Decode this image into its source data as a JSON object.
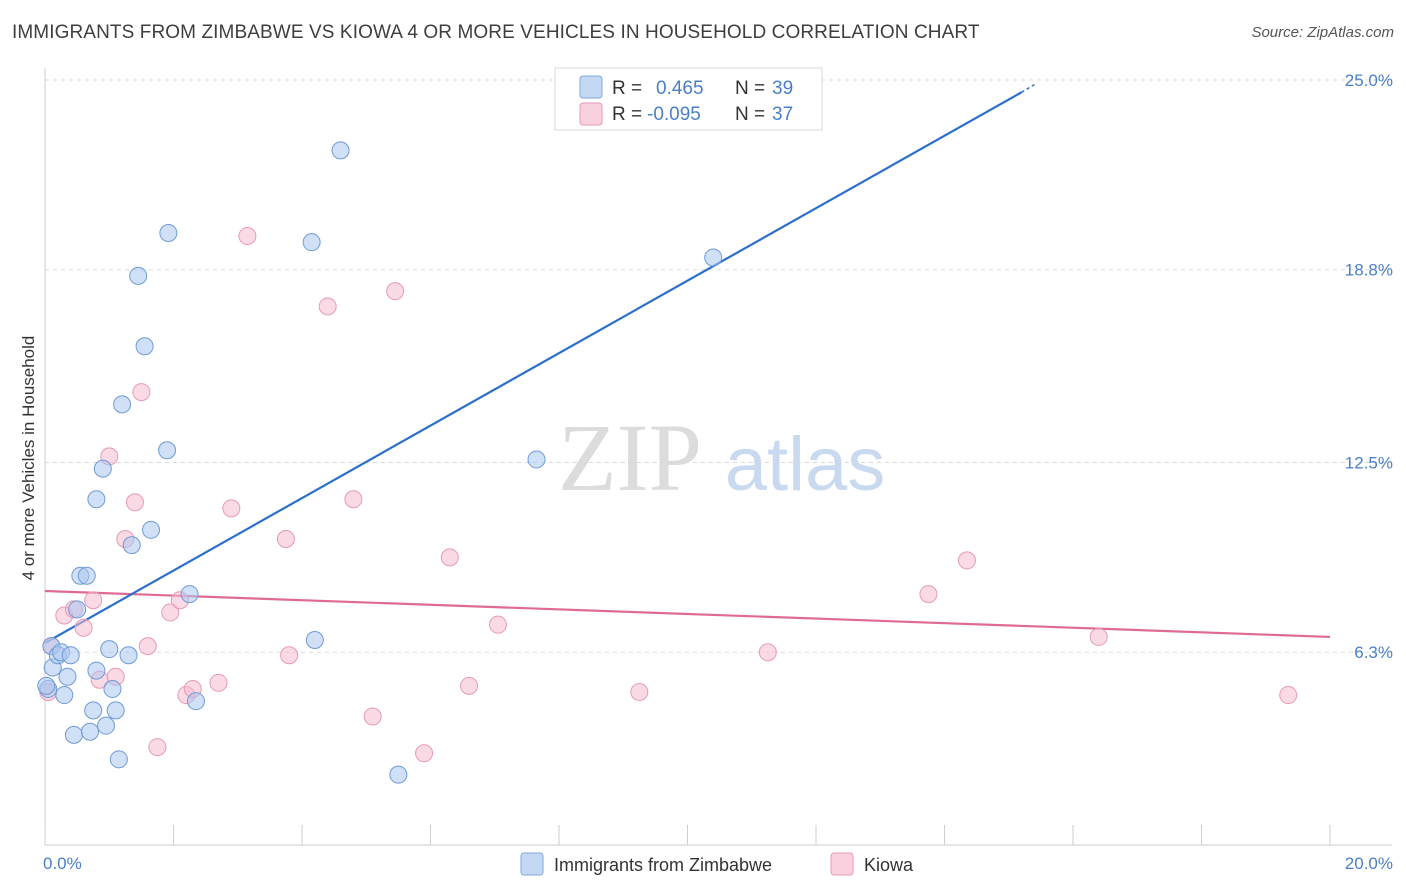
{
  "header": {
    "title": "IMMIGRANTS FROM ZIMBABWE VS KIOWA 4 OR MORE VEHICLES IN HOUSEHOLD CORRELATION CHART",
    "source": "Source: ZipAtlas.com"
  },
  "watermark": {
    "zip": "ZIP",
    "atlas": "atlas"
  },
  "colors": {
    "blue": "#4a7fc8",
    "blue_line": "#2a6fcc",
    "blue_fill": "#a9c6ee",
    "pink": "#e06a96",
    "pink_fill": "#f5bcd0",
    "grid": "#d9d9d9",
    "axis": "#cccccc"
  },
  "chart_data": {
    "type": "scatter",
    "title": "IMMIGRANTS FROM ZIMBABWE VS KIOWA 4 OR MORE VEHICLES IN HOUSEHOLD CORRELATION CHART",
    "xlabel": "",
    "ylabel": "4 or more Vehicles in Household",
    "xlim": [
      0,
      20
    ],
    "ylim": [
      0,
      25.0
    ],
    "x_tick_labels": [
      "0.0%",
      "20.0%"
    ],
    "y_ticks": [
      6.3,
      12.5,
      18.8,
      25.0
    ],
    "y_tick_labels": [
      "6.3%",
      "12.5%",
      "18.8%",
      "25.0%"
    ],
    "grid": true,
    "legend_top": [
      {
        "r_label": "R =",
        "r_value": "0.465",
        "n_label": "N =",
        "n_value": "39"
      },
      {
        "r_label": "R =",
        "r_value": "-0.095",
        "n_label": "N =",
        "n_value": "37"
      }
    ],
    "series": [
      {
        "name": "Immigrants from Zimbabwe",
        "color": "blue",
        "trend": {
          "x": [
            0,
            15.2
          ],
          "y": [
            6.6,
            24.6
          ],
          "dash_x": [
            15.2,
            15.4
          ],
          "dash_y": [
            24.6,
            24.85
          ]
        },
        "points": [
          [
            0.05,
            5.1
          ],
          [
            0.1,
            6.5
          ],
          [
            0.12,
            5.8
          ],
          [
            0.2,
            6.2
          ],
          [
            0.25,
            6.3
          ],
          [
            0.3,
            4.9
          ],
          [
            0.35,
            5.5
          ],
          [
            0.4,
            6.2
          ],
          [
            0.45,
            3.6
          ],
          [
            0.5,
            7.7
          ],
          [
            0.55,
            8.8
          ],
          [
            0.65,
            8.8
          ],
          [
            0.7,
            3.7
          ],
          [
            0.75,
            4.4
          ],
          [
            0.8,
            5.7
          ],
          [
            0.8,
            11.3
          ],
          [
            0.9,
            12.3
          ],
          [
            0.95,
            3.9
          ],
          [
            1.0,
            6.4
          ],
          [
            1.05,
            5.1
          ],
          [
            1.1,
            4.4
          ],
          [
            1.15,
            2.8
          ],
          [
            1.2,
            14.4
          ],
          [
            1.3,
            6.2
          ],
          [
            1.35,
            9.8
          ],
          [
            1.45,
            18.6
          ],
          [
            1.55,
            16.3
          ],
          [
            1.65,
            10.3
          ],
          [
            1.9,
            12.9
          ],
          [
            1.92,
            20.0
          ],
          [
            2.25,
            8.2
          ],
          [
            2.35,
            4.7
          ],
          [
            4.15,
            19.7
          ],
          [
            4.2,
            6.7
          ],
          [
            4.6,
            22.7
          ],
          [
            5.5,
            2.3
          ],
          [
            7.65,
            12.6
          ],
          [
            10.4,
            19.2
          ],
          [
            0.02,
            5.2
          ]
        ]
      },
      {
        "name": "Kiowa",
        "color": "pink",
        "trend": {
          "x": [
            0,
            20
          ],
          "y": [
            8.3,
            6.8
          ]
        },
        "points": [
          [
            0.1,
            6.5
          ],
          [
            0.3,
            7.5
          ],
          [
            0.45,
            7.7
          ],
          [
            0.6,
            7.1
          ],
          [
            0.75,
            8.0
          ],
          [
            0.85,
            5.4
          ],
          [
            1.0,
            12.7
          ],
          [
            1.1,
            5.5
          ],
          [
            1.25,
            10.0
          ],
          [
            1.4,
            11.2
          ],
          [
            1.5,
            14.8
          ],
          [
            1.6,
            6.5
          ],
          [
            1.75,
            3.2
          ],
          [
            1.95,
            7.6
          ],
          [
            2.1,
            8.0
          ],
          [
            2.2,
            4.9
          ],
          [
            2.3,
            5.1
          ],
          [
            2.7,
            5.3
          ],
          [
            2.9,
            11.0
          ],
          [
            3.15,
            19.9
          ],
          [
            3.75,
            10.0
          ],
          [
            3.8,
            6.2
          ],
          [
            4.4,
            17.6
          ],
          [
            4.8,
            11.3
          ],
          [
            5.1,
            4.2
          ],
          [
            5.45,
            18.1
          ],
          [
            5.9,
            3.0
          ],
          [
            6.3,
            9.4
          ],
          [
            6.6,
            5.2
          ],
          [
            7.05,
            7.2
          ],
          [
            9.25,
            5.0
          ],
          [
            11.25,
            6.3
          ],
          [
            13.75,
            8.2
          ],
          [
            14.35,
            9.3
          ],
          [
            16.4,
            6.8
          ],
          [
            19.35,
            4.9
          ],
          [
            0.05,
            5.0
          ]
        ]
      }
    ]
  },
  "bottom_legend": [
    {
      "label": "Immigrants from Zimbabwe"
    },
    {
      "label": "Kiowa"
    }
  ]
}
